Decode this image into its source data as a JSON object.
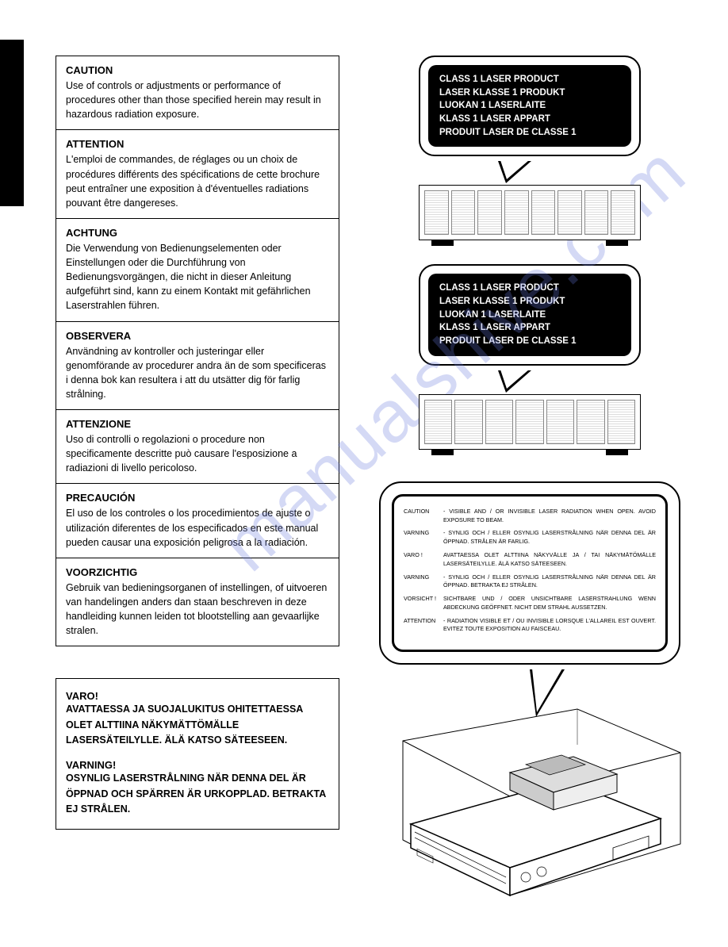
{
  "watermark_text": "manualshive.com",
  "watermark_color": "#6478dc",
  "warnings": [
    {
      "title": "CAUTION",
      "body": "Use of controls or adjustments or performance of procedures other than those specified herein may result in hazardous radiation exposure."
    },
    {
      "title": "ATTENTION",
      "body": "L'emploi de commandes, de réglages ou un choix de procédures différents des spécifications de cette brochure peut entraîner une exposition à d'éventuelles radiations pouvant être dangereses."
    },
    {
      "title": "ACHTUNG",
      "body": "Die Verwendung von Bedienungselementen oder Einstellungen oder die Durchführung von Bedienungsvorgängen, die nicht in dieser Anleitung aufgeführt sind, kann zu einem Kontakt mit gefährlichen Laserstrahlen führen."
    },
    {
      "title": "OBSERVERA",
      "body": "Användning av kontroller och justeringar eller genomförande av procedurer andra än de som specificeras i denna bok kan resultera i att du utsätter dig för farlig strålning."
    },
    {
      "title": "ATTENZIONE",
      "body": "Uso di controlli o regolazioni o procedure non specificamente descritte può causare l'esposizione a radiazioni di livello pericoloso."
    },
    {
      "title": "PRECAUCIÓN",
      "body": "El uso de los controles o los procedimientos de ajuste o utilización diferentes de los especificados en este manual pueden causar una exposición peligrosa a la radiación."
    },
    {
      "title": "VOORZICHTIG",
      "body": "Gebruik van bedieningsorganen of instellingen, of uitvoeren van handelingen anders dan staan beschreven in deze handleiding kunnen leiden tot blootstelling aan gevaarlijke stralen."
    }
  ],
  "varo": [
    {
      "title": "VARO!",
      "body": "AVATTAESSA JA SUOJALUKITUS OHITETTAESSA OLET ALTTIINA NÄKYMÄTTÖMÄLLE LASERSÄTEILYLLE.  ÄLÄ KATSO SÄTEESEEN."
    },
    {
      "title": "VARNING!",
      "body": "OSYNLIG LASERSTRÅLNING NÄR DENNA DEL ÄR ÖPPNAD OCH SPÄRREN ÄR URKOPPLAD. BETRAKTA EJ STRÅLEN."
    }
  ],
  "laser_label_lines": [
    "CLASS 1 LASER PRODUCT",
    "LASER KLASSE 1 PRODUKT",
    "LUOKAN 1 LASERLAITE",
    "KLASS 1 LASER APPART",
    "PRODUIT LASER DE CLASSE 1"
  ],
  "radiation_label": [
    {
      "label": "CAUTION",
      "text": "- VISIBLE AND / OR INVISIBLE LASER RADIATION WHEN OPEN. AVOID EXPOSURE TO BEAM."
    },
    {
      "label": "VARNING",
      "text": "- SYNLIG OCH / ELLER OSYNLIG LASERSTRÅLNING NÄR DENNA DEL ÄR ÖPPNAD. STRÅLEN ÄR FARLIG."
    },
    {
      "label": "VARO !",
      "text": "AVATTAESSA OLET ALTTIINA NÄKYVÄLLE JA / TAI NÄKYMÄTÖMÄLLE LASERSÄTEILYLLE. ÄLÄ KATSO SÄTEESEEN."
    },
    {
      "label": "VARNING",
      "text": "- SYNLIG OCH / ELLER OSYNLIG LASERSTRÅLNING NÄR DENNA DEL ÄR ÖPPNAD. BETRAKTA EJ STRÅLEN."
    },
    {
      "label": "VORSICHT !",
      "text": "SICHTBARE UND / ODER UNSICHTBARE LASERSTRAHLUNG WENN ABDECKUNG GEÖFFNET. NICHT DEM STRAHL AUSSETZEN."
    },
    {
      "label": "ATTENTION",
      "text": "- RADIATION VISIBLE ET / OU INVISIBLE LORSQUE L'ALLAREIL EST OUVERT. EVITEZ TOUTE EXPOSITION AU FAISCEAU."
    }
  ],
  "colors": {
    "border": "#000000",
    "bg": "#ffffff",
    "label_bg": "#000000",
    "label_text": "#ffffff"
  }
}
